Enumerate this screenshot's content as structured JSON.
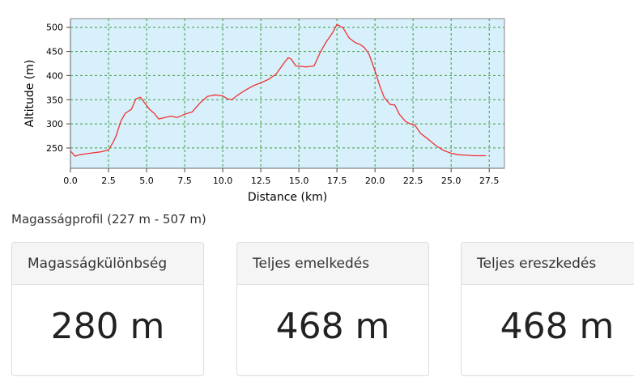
{
  "chart_data": {
    "type": "line",
    "xlabel": "Distance (km)",
    "ylabel": "Altitude (m)",
    "xlim": [
      0,
      28.5
    ],
    "ylim": [
      208,
      518
    ],
    "x_ticks": [
      0.0,
      2.5,
      5.0,
      7.5,
      10.0,
      12.5,
      15.0,
      17.5,
      20.0,
      22.5,
      25.0,
      27.5
    ],
    "y_ticks": [
      250,
      300,
      350,
      400,
      450,
      500
    ],
    "grid": true,
    "colors": {
      "line": "#ee3333",
      "plot_bg": "#d8f0fb",
      "grid": "#3a9a3a"
    },
    "series": [
      {
        "x": [
          0.0,
          0.3,
          0.6,
          1.0,
          1.5,
          2.0,
          2.5,
          2.8,
          3.0,
          3.3,
          3.6,
          4.0,
          4.3,
          4.6,
          4.9,
          5.2,
          5.5,
          5.8,
          6.2,
          6.6,
          7.0,
          7.5,
          8.0,
          8.5,
          9.0,
          9.5,
          10.0,
          10.3,
          10.6,
          11.0,
          11.5,
          12.0,
          12.5,
          13.0,
          13.5,
          14.0,
          14.3,
          14.5,
          14.8,
          15.5,
          16.0,
          16.4,
          16.8,
          17.2,
          17.5,
          17.9,
          18.3,
          18.7,
          19.0,
          19.3,
          19.6,
          20.0,
          20.3,
          20.6,
          21.0,
          21.3,
          21.6,
          22.0,
          22.3,
          22.6,
          23.0,
          23.5,
          24.0,
          24.5,
          25.0,
          25.5,
          26.0,
          26.5,
          27.0,
          27.3
        ],
        "y": [
          244,
          233,
          236,
          238,
          240,
          242,
          246,
          262,
          275,
          305,
          322,
          330,
          352,
          355,
          342,
          330,
          322,
          310,
          313,
          316,
          313,
          320,
          325,
          343,
          357,
          360,
          358,
          352,
          350,
          360,
          370,
          379,
          385,
          392,
          403,
          425,
          437,
          434,
          420,
          418,
          420,
          448,
          470,
          488,
          506,
          499,
          478,
          468,
          465,
          458,
          445,
          410,
          380,
          355,
          340,
          339,
          320,
          305,
          300,
          298,
          280,
          268,
          255,
          245,
          239,
          236,
          235,
          234,
          234,
          234
        ]
      }
    ]
  },
  "profile_caption": "Magasságprofil (227 m - 507 m)",
  "stats": [
    {
      "label": "Magasságkülönbség",
      "value": "280 m"
    },
    {
      "label": "Teljes emelkedés",
      "value": "468 m"
    },
    {
      "label": "Teljes ereszkedés",
      "value": "468 m"
    }
  ]
}
